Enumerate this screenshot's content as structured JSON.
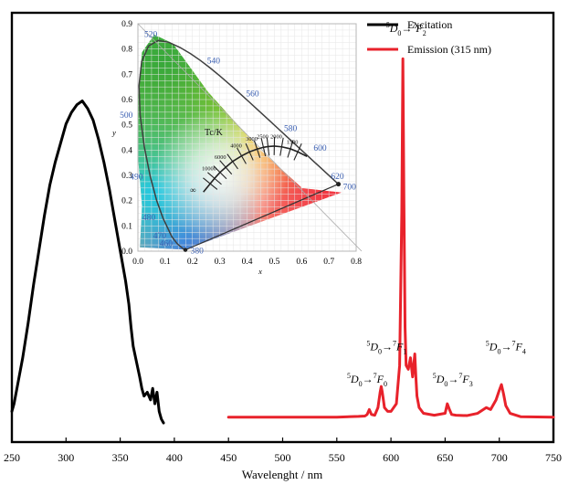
{
  "chart_data": {
    "type": "line",
    "xlabel": "Wavelenght / nm",
    "ylabel": "",
    "x_range": [
      250,
      750
    ],
    "x_ticks": [
      250,
      300,
      350,
      400,
      450,
      500,
      550,
      600,
      650,
      700,
      750
    ],
    "legend_position": "top-right",
    "series": [
      {
        "name": "Excitation",
        "color": "#000000",
        "x": [
          250,
          252,
          256,
          260,
          265,
          270,
          275,
          280,
          285,
          290,
          295,
          300,
          305,
          310,
          315,
          320,
          325,
          330,
          335,
          340,
          345,
          350,
          355,
          358,
          360,
          362,
          365,
          368,
          370,
          372,
          375,
          378,
          380,
          382,
          384,
          386,
          388,
          390
        ],
        "y": [
          0.08,
          0.1,
          0.16,
          0.22,
          0.31,
          0.41,
          0.5,
          0.59,
          0.67,
          0.73,
          0.78,
          0.83,
          0.86,
          0.88,
          0.89,
          0.87,
          0.84,
          0.79,
          0.73,
          0.66,
          0.58,
          0.5,
          0.42,
          0.36,
          0.3,
          0.25,
          0.21,
          0.17,
          0.14,
          0.12,
          0.13,
          0.11,
          0.14,
          0.1,
          0.13,
          0.08,
          0.06,
          0.05
        ]
      },
      {
        "name": "Emission (315 nm)",
        "color": "#e8222b",
        "x": [
          450,
          500,
          550,
          570,
          576,
          578,
          580,
          582,
          585,
          588,
          590,
          591,
          592,
          594,
          597,
          600,
          605,
          608,
          610,
          611,
          612,
          613,
          614,
          616,
          618,
          620,
          621,
          622,
          623,
          624,
          626,
          630,
          640,
          650,
          652,
          654,
          656,
          660,
          670,
          680,
          688,
          692,
          697,
          700,
          702,
          704,
          706,
          710,
          720,
          750
        ],
        "y": [
          0.065,
          0.065,
          0.065,
          0.067,
          0.068,
          0.072,
          0.085,
          0.072,
          0.07,
          0.09,
          0.13,
          0.145,
          0.13,
          0.09,
          0.08,
          0.08,
          0.1,
          0.2,
          0.6,
          1.0,
          0.62,
          0.3,
          0.2,
          0.19,
          0.22,
          0.17,
          0.2,
          0.23,
          0.17,
          0.12,
          0.09,
          0.075,
          0.07,
          0.075,
          0.1,
          0.085,
          0.072,
          0.07,
          0.069,
          0.075,
          0.09,
          0.085,
          0.11,
          0.135,
          0.15,
          0.125,
          0.095,
          0.075,
          0.066,
          0.065
        ]
      }
    ],
    "annotations": [
      {
        "text": "D",
        "sup_pre": "5",
        "sub": "0",
        "arrow": "→",
        "sup_mid": "7",
        "end": "F",
        "end_sub": "2",
        "x": 614,
        "y": 1.07,
        "anchor": "middle"
      },
      {
        "text": "D",
        "sup_pre": "5",
        "sub": "0",
        "arrow": "→",
        "sup_mid": "7",
        "end": "F",
        "end_sub": "1",
        "x": 596,
        "y": 0.24,
        "anchor": "middle"
      },
      {
        "text": "D",
        "sup_pre": "5",
        "sub": "0",
        "arrow": "→",
        "sup_mid": "7",
        "end": "F",
        "end_sub": "0",
        "x": 578,
        "y": 0.155,
        "anchor": "middle"
      },
      {
        "text": "D",
        "sup_pre": "5",
        "sub": "0",
        "arrow": "→",
        "sup_mid": "7",
        "end": "F",
        "end_sub": "3",
        "x": 657,
        "y": 0.155,
        "anchor": "middle"
      },
      {
        "text": "D",
        "sup_pre": "5",
        "sub": "0",
        "arrow": "→",
        "sup_mid": "7",
        "end": "F",
        "end_sub": "4",
        "x": 706,
        "y": 0.24,
        "anchor": "middle"
      }
    ],
    "inset": {
      "type": "cie1931",
      "xlabel": "x",
      "ylabel": "y",
      "x_range": [
        0.0,
        0.8
      ],
      "y_range": [
        0.0,
        0.9
      ],
      "x_ticks": [
        "0.0",
        "0.1",
        "0.2",
        "0.3",
        "0.4",
        "0.5",
        "0.6",
        "0.7",
        "0.8"
      ],
      "y_ticks": [
        "0.0",
        "0.1",
        "0.2",
        "0.3",
        "0.4",
        "0.5",
        "0.6",
        "0.7",
        "0.8",
        "0.9"
      ],
      "locus_labels": [
        {
          "text": "380",
          "x": 0.173,
          "y": 0.005
        },
        {
          "text": "460",
          "x": 0.144,
          "y": 0.03
        },
        {
          "text": "470",
          "x": 0.124,
          "y": 0.058
        },
        {
          "text": "480",
          "x": 0.091,
          "y": 0.133
        },
        {
          "text": "490",
          "x": 0.045,
          "y": 0.295
        },
        {
          "text": "500",
          "x": 0.008,
          "y": 0.538
        },
        {
          "text": "520",
          "x": 0.074,
          "y": 0.834
        },
        {
          "text": "540",
          "x": 0.23,
          "y": 0.754
        },
        {
          "text": "560",
          "x": 0.373,
          "y": 0.624
        },
        {
          "text": "580",
          "x": 0.512,
          "y": 0.487
        },
        {
          "text": "600",
          "x": 0.627,
          "y": 0.372
        },
        {
          "text": "620",
          "x": 0.691,
          "y": 0.308
        },
        {
          "text": "700",
          "x": 0.735,
          "y": 0.265
        }
      ],
      "locus": [
        [
          0.1741,
          0.005
        ],
        [
          0.1738,
          0.0049
        ],
        [
          0.1721,
          0.0048
        ],
        [
          0.1666,
          0.0089
        ],
        [
          0.144,
          0.0297
        ],
        [
          0.1241,
          0.0578
        ],
        [
          0.0913,
          0.1327
        ],
        [
          0.0687,
          0.2007
        ],
        [
          0.0454,
          0.295
        ],
        [
          0.0235,
          0.4127
        ],
        [
          0.0082,
          0.5384
        ],
        [
          0.0039,
          0.6548
        ],
        [
          0.0139,
          0.7502
        ],
        [
          0.0389,
          0.812
        ],
        [
          0.0743,
          0.8338
        ],
        [
          0.1142,
          0.8262
        ],
        [
          0.1547,
          0.8059
        ],
        [
          0.1929,
          0.7816
        ],
        [
          0.2296,
          0.7543
        ],
        [
          0.2658,
          0.7243
        ],
        [
          0.3016,
          0.6923
        ],
        [
          0.3373,
          0.6589
        ],
        [
          0.3731,
          0.6245
        ],
        [
          0.4087,
          0.5896
        ],
        [
          0.4441,
          0.5547
        ],
        [
          0.4788,
          0.5202
        ],
        [
          0.5125,
          0.4866
        ],
        [
          0.5448,
          0.4544
        ],
        [
          0.5752,
          0.4242
        ],
        [
          0.6029,
          0.3965
        ],
        [
          0.627,
          0.3725
        ],
        [
          0.6482,
          0.3514
        ],
        [
          0.6658,
          0.334
        ],
        [
          0.6915,
          0.3083
        ],
        [
          0.7079,
          0.292
        ],
        [
          0.7347,
          0.2653
        ]
      ],
      "tc_label": "Tc/K",
      "planckian_labels": [
        {
          "text": "10000",
          "x": 0.281,
          "y": 0.288
        },
        {
          "text": "6000",
          "x": 0.322,
          "y": 0.332
        },
        {
          "text": "4000",
          "x": 0.38,
          "y": 0.377
        },
        {
          "text": "3000",
          "x": 0.437,
          "y": 0.404
        },
        {
          "text": "2500",
          "x": 0.477,
          "y": 0.414
        },
        {
          "text": "2000",
          "x": 0.527,
          "y": 0.413
        },
        {
          "text": "1500",
          "x": 0.586,
          "y": 0.393
        }
      ],
      "planckian_locus": [
        [
          0.24,
          0.234
        ],
        [
          0.265,
          0.267
        ],
        [
          0.281,
          0.288
        ],
        [
          0.301,
          0.312
        ],
        [
          0.322,
          0.332
        ],
        [
          0.347,
          0.355
        ],
        [
          0.38,
          0.377
        ],
        [
          0.409,
          0.393
        ],
        [
          0.437,
          0.404
        ],
        [
          0.46,
          0.411
        ],
        [
          0.477,
          0.414
        ],
        [
          0.5,
          0.416
        ],
        [
          0.527,
          0.413
        ],
        [
          0.559,
          0.405
        ],
        [
          0.586,
          0.393
        ],
        [
          0.62,
          0.375
        ]
      ],
      "infinity_symbol": "∞",
      "red_endpoint": {
        "x": 0.735,
        "y": 0.265
      }
    }
  }
}
